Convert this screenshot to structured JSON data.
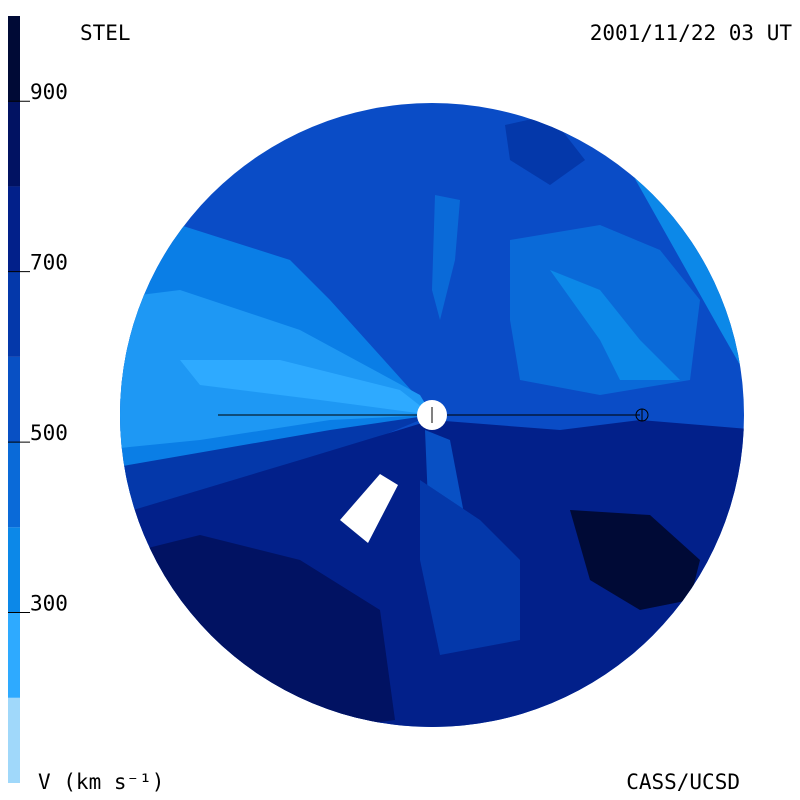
{
  "chart_data": {
    "type": "contour",
    "title": "STEL",
    "subtitle": "2001/11/22 03 UT",
    "source": "CASS/UCSD",
    "colorbar_label": "V (km s⁻¹)",
    "clim": [
      100,
      1000
    ],
    "cticks": [
      300,
      500,
      700,
      900
    ],
    "levels": [
      100,
      200,
      300,
      400,
      500,
      600,
      700,
      800,
      900,
      1000
    ],
    "colors": [
      "#a0d8fa",
      "#2eaaff",
      "#0c88e8",
      "#0a6ad8",
      "#0850c4",
      "#0438aa",
      "#02208a",
      "#011262",
      "#000a36"
    ]
  }
}
